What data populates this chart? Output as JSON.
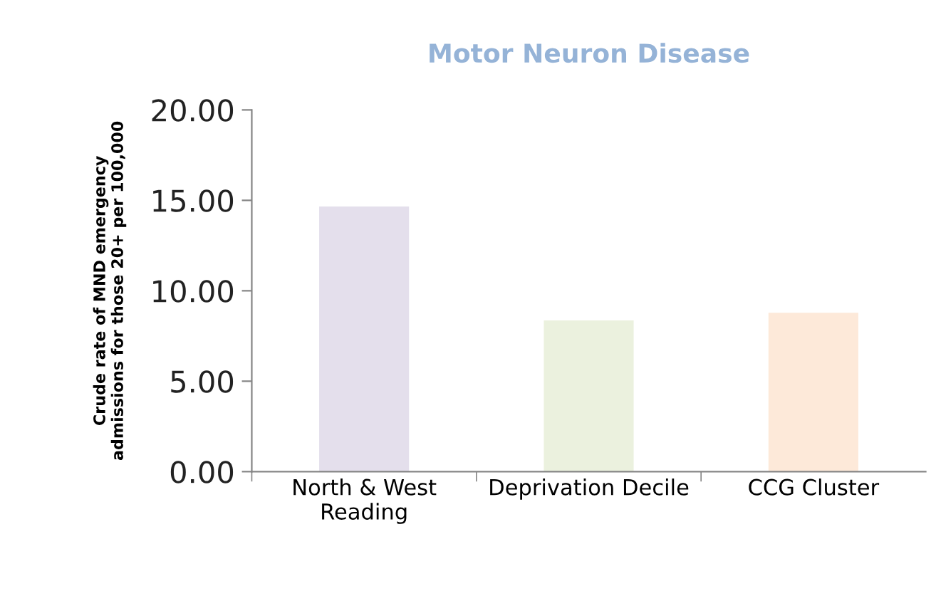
{
  "chart_data": {
    "type": "bar",
    "title": "Motor Neuron Disease",
    "ylabel": "Crude rate of MND emergency\nadmissions for those 20+ per 100,000",
    "categories": [
      "North & West\nReading",
      "Deprivation Decile",
      "CCG Cluster"
    ],
    "values": [
      14.66,
      8.36,
      8.78
    ],
    "colors": [
      "#e4dfec",
      "#ebf1de",
      "#fde9d9"
    ],
    "ylim": [
      0,
      20
    ],
    "yticks": [
      {
        "value": 0,
        "label": "0.00"
      },
      {
        "value": 5,
        "label": "5.00"
      },
      {
        "value": 10,
        "label": "10.00"
      },
      {
        "value": 15,
        "label": "15.00"
      },
      {
        "value": 20,
        "label": "20.00"
      }
    ],
    "grid": false
  }
}
